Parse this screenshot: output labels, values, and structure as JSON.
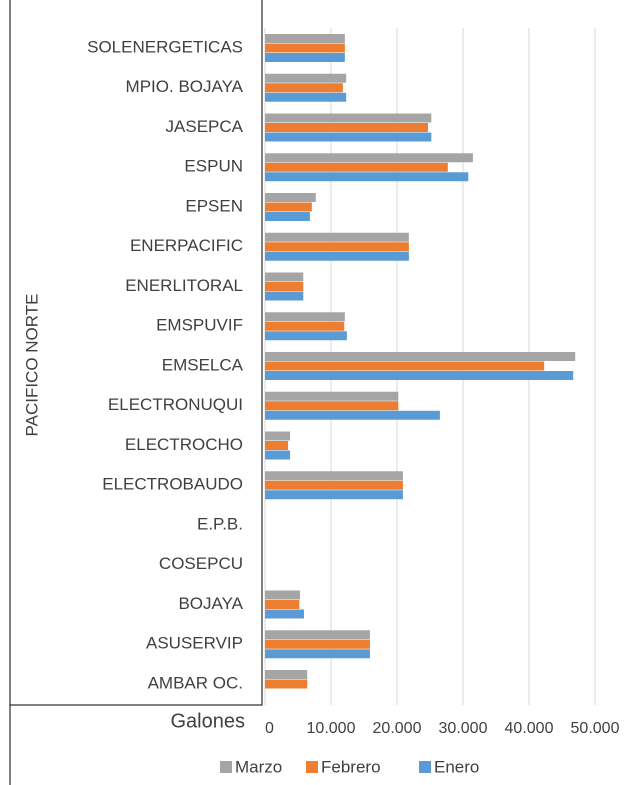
{
  "chart_data": {
    "type": "bar",
    "orientation": "horizontal",
    "y_label": "PACIFICO NORTE",
    "x_label": "Galones",
    "categories": [
      "SOLENERGETICAS",
      "MPIO. BOJAYA",
      "JASEPCA",
      "ESPUN",
      "EPSEN",
      "ENERPACIFIC",
      "ENERLITORAL",
      "EMSPUVIF",
      "EMSELCA",
      "ELECTRONUQUI",
      "ELECTROCHO",
      "ELECTROBAUDO",
      "E.P.B.",
      "COSEPCU",
      "BOJAYA",
      "ASUSERVIP",
      "AMBAR OC."
    ],
    "series": [
      {
        "name": "Marzo",
        "color": "#a5a5a5",
        "values": [
          12100,
          12300,
          25200,
          31500,
          7700,
          21800,
          5800,
          12100,
          47000,
          20200,
          3800,
          20900,
          0,
          0,
          5300,
          15900,
          6400
        ]
      },
      {
        "name": "Febrero",
        "color": "#ed7d31",
        "values": [
          12100,
          11800,
          24700,
          27700,
          7100,
          21800,
          5800,
          12000,
          42300,
          20200,
          3500,
          20900,
          0,
          0,
          5200,
          15900,
          6400
        ]
      },
      {
        "name": "Enero",
        "color": "#5b9bd5",
        "values": [
          12100,
          12300,
          25200,
          30800,
          6800,
          21800,
          5800,
          12400,
          46700,
          26500,
          3800,
          20900,
          0,
          0,
          5900,
          15900,
          null
        ]
      }
    ],
    "xlim": [
      0,
      50000
    ],
    "xticks": [
      0,
      {
        "value": 10000,
        "label": "10.000"
      },
      {
        "value": 20000,
        "label": "20.000"
      },
      {
        "value": 30000,
        "label": "30.000"
      },
      {
        "value": 40000,
        "label": "40.000"
      },
      {
        "value": 50000,
        "label": "50.000"
      }
    ],
    "grid": true,
    "legend": "bottom"
  }
}
